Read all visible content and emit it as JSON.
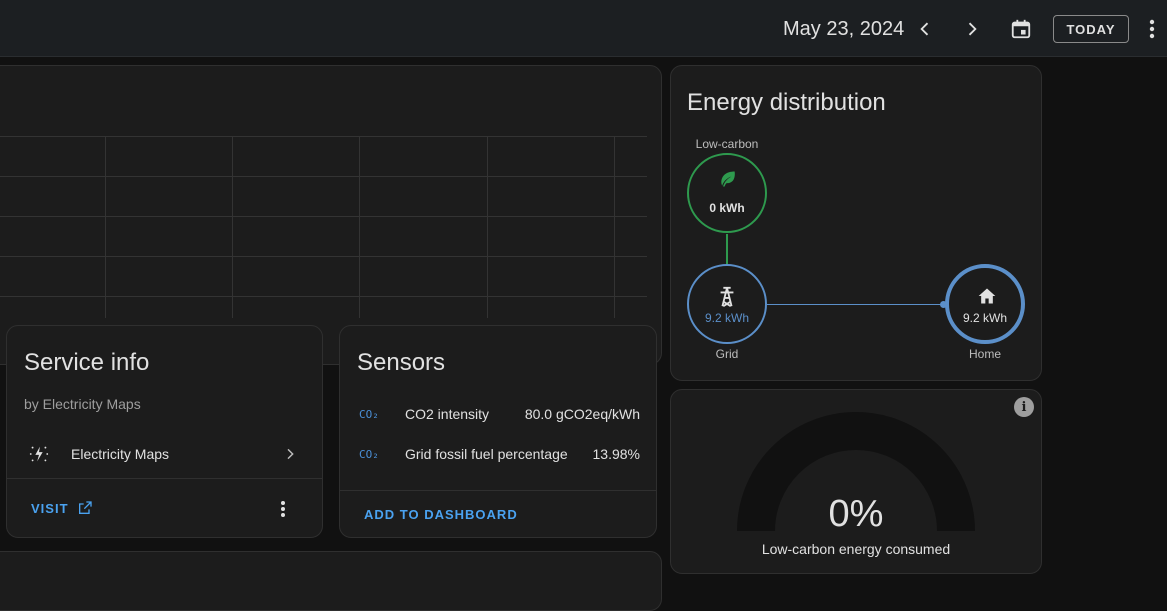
{
  "header": {
    "date": "May 23, 2024",
    "today_label": "TODAY"
  },
  "service_info": {
    "title": "Service info",
    "subtitle": "by Electricity Maps",
    "integration_name": "Electricity Maps",
    "visit_label": "VISIT"
  },
  "sensors": {
    "title": "Sensors",
    "items": [
      {
        "icon": "CO₂",
        "name": "CO2 intensity",
        "value": "80.0 gCO2eq/kWh"
      },
      {
        "icon": "CO₂",
        "name": "Grid fossil fuel percentage",
        "value": "13.98%"
      }
    ],
    "add_label": "ADD TO DASHBOARD"
  },
  "energy_distribution": {
    "title": "Energy distribution",
    "low_carbon": {
      "label": "Low-carbon",
      "value": "0 kWh"
    },
    "grid": {
      "label": "Grid",
      "value": "9.2 kWh"
    },
    "home": {
      "label": "Home",
      "value": "9.2 kWh"
    }
  },
  "gauge": {
    "value": "0%",
    "label": "Low-carbon energy consumed",
    "fraction": 0
  },
  "colors": {
    "accent": "#4aa2f0",
    "low_carbon": "#2e9a4e",
    "grid": "#5b8fc9"
  }
}
